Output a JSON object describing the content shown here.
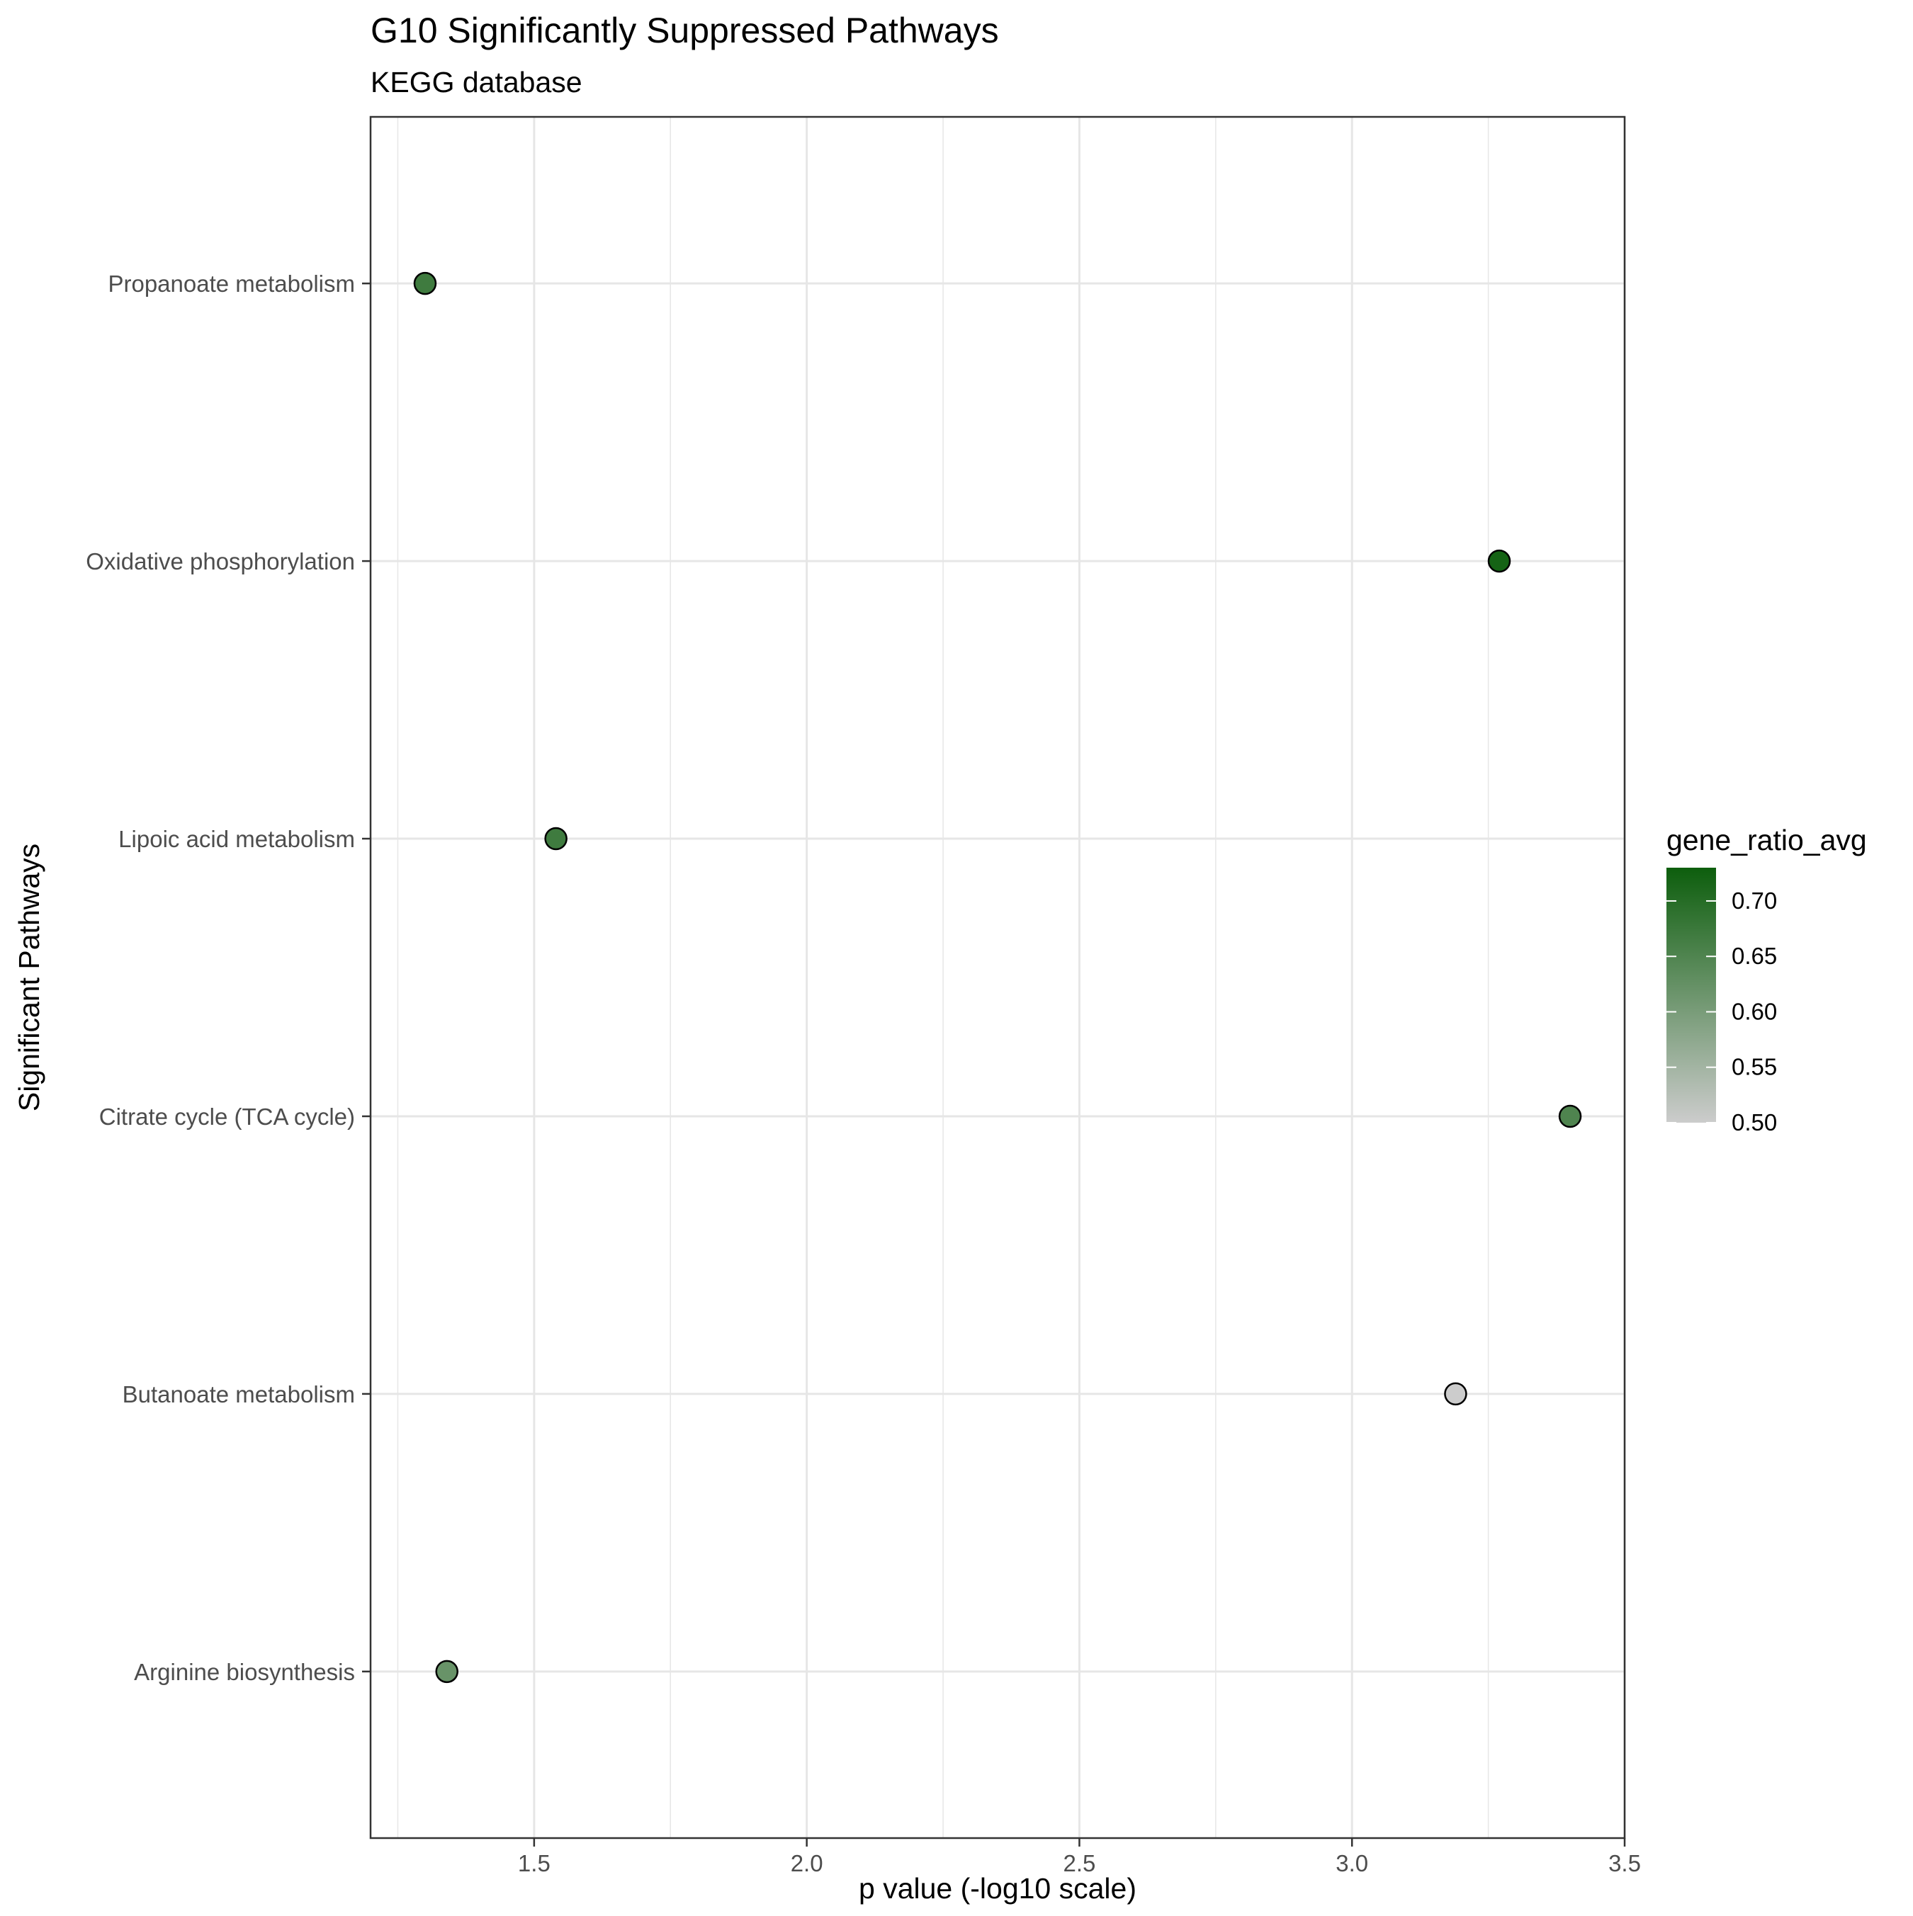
{
  "chart_data": {
    "type": "scatter",
    "title": "G10 Significantly Suppressed Pathways",
    "subtitle": "KEGG database",
    "xlabel": "p value (-log10 scale)",
    "ylabel": "Significant Pathways",
    "xlim": [
      1.2,
      3.5
    ],
    "x_ticks": [
      1.5,
      2.0,
      2.5,
      3.0,
      3.5
    ],
    "x_tick_labels": [
      "1.5",
      "2.0",
      "2.5",
      "3.0",
      "3.5"
    ],
    "categories": [
      "Propanoate metabolism",
      "Oxidative phosphorylation",
      "Lipoic acid metabolism",
      "Citrate cycle (TCA cycle)",
      "Butanoate metabolism",
      "Arginine biosynthesis"
    ],
    "points": [
      {
        "pathway": "Propanoate metabolism",
        "x": 1.3,
        "gene_ratio_avg": 0.67
      },
      {
        "pathway": "Oxidative phosphorylation",
        "x": 3.27,
        "gene_ratio_avg": 0.72
      },
      {
        "pathway": "Lipoic acid metabolism",
        "x": 1.54,
        "gene_ratio_avg": 0.67
      },
      {
        "pathway": "Citrate cycle (TCA cycle)",
        "x": 3.4,
        "gene_ratio_avg": 0.65
      },
      {
        "pathway": "Butanoate metabolism",
        "x": 3.19,
        "gene_ratio_avg": 0.5
      },
      {
        "pathway": "Arginine biosynthesis",
        "x": 1.34,
        "gene_ratio_avg": 0.62
      }
    ],
    "legend": {
      "title": "gene_ratio_avg",
      "position": "right",
      "range": [
        0.5,
        0.73
      ],
      "ticks": [
        0.5,
        0.55,
        0.6,
        0.65,
        0.7
      ],
      "tick_labels": [
        "0.50",
        "0.55",
        "0.60",
        "0.65",
        "0.70"
      ],
      "color_low": "#cccccc",
      "color_high": "#0d5e0d"
    },
    "grid": true,
    "colors": {
      "grid": "#e6e6e6",
      "panel_border": "#333333",
      "point_stroke": "#000000",
      "text": "#000000",
      "tick_text": "#4d4d4d"
    }
  }
}
